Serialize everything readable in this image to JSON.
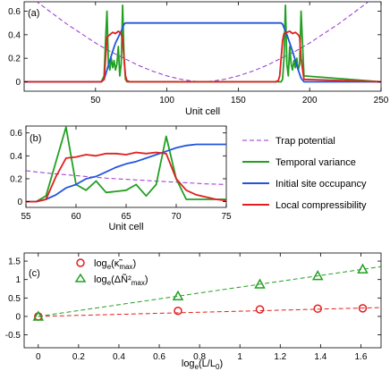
{
  "chart_data": [
    {
      "id": "a",
      "panel_label": "(a)",
      "type": "line",
      "xlabel": "Unit cell",
      "ylabel": "",
      "xlim": [
        0,
        250
      ],
      "ylim": [
        -0.08,
        0.68
      ],
      "xticks": [
        50,
        100,
        150,
        200,
        250
      ],
      "yticks": [
        0,
        0.2,
        0.4,
        0.6
      ],
      "xtick_labels": [
        "50",
        "100",
        "150",
        "200",
        "250"
      ],
      "ytick_labels": [
        "0",
        "0.2",
        "0.4",
        "0.6"
      ],
      "series": [
        {
          "key": "trap",
          "color": "#9a32cd",
          "dash": "5,3",
          "x": [
            0,
            10,
            20,
            30,
            40,
            50,
            60,
            70,
            80,
            90,
            100,
            110,
            118,
            125,
            132,
            140,
            150,
            160,
            170,
            180,
            190,
            200,
            210,
            220,
            230,
            240,
            250
          ],
          "y": [
            0.76,
            0.67,
            0.58,
            0.49,
            0.41,
            0.33,
            0.26,
            0.2,
            0.14,
            0.09,
            0.05,
            0.02,
            0.006,
            0.0,
            0.006,
            0.02,
            0.05,
            0.09,
            0.14,
            0.2,
            0.26,
            0.33,
            0.41,
            0.49,
            0.58,
            0.67,
            0.76
          ]
        },
        {
          "key": "var",
          "color": "#22a022",
          "dash": "",
          "x": [
            0,
            54,
            56,
            57,
            58,
            59,
            60,
            61,
            62,
            63,
            64,
            65,
            66,
            67,
            68,
            69,
            70,
            71,
            72,
            180,
            181,
            182,
            183,
            184,
            185,
            186,
            187,
            188,
            189,
            190,
            191,
            192,
            193,
            194,
            196,
            250
          ],
          "y": [
            0,
            0,
            0.05,
            0.35,
            0.6,
            0.15,
            0.1,
            0.2,
            0.12,
            0.18,
            0.1,
            0.15,
            0.3,
            0.05,
            0.15,
            0.65,
            0.2,
            0.02,
            0,
            0,
            0.02,
            0.2,
            0.65,
            0.15,
            0.05,
            0.3,
            0.15,
            0.1,
            0.18,
            0.12,
            0.2,
            0.1,
            0.15,
            0.6,
            0.05,
            0
          ]
        },
        {
          "key": "occ",
          "color": "#2255dd",
          "dash": "",
          "x": [
            0,
            54,
            56,
            58,
            60,
            62,
            64,
            66,
            68,
            69,
            70,
            71,
            72,
            74,
            178,
            180,
            181,
            182,
            184,
            186,
            188,
            190,
            192,
            194,
            196,
            250
          ],
          "y": [
            0,
            0,
            0.02,
            0.1,
            0.18,
            0.26,
            0.33,
            0.38,
            0.43,
            0.46,
            0.49,
            0.5,
            0.5,
            0.5,
            0.5,
            0.5,
            0.49,
            0.46,
            0.4,
            0.33,
            0.26,
            0.18,
            0.1,
            0.03,
            0,
            0
          ]
        },
        {
          "key": "comp",
          "color": "#e02020",
          "dash": "",
          "x": [
            0,
            54,
            56,
            57,
            58,
            60,
            62,
            64,
            66,
            67,
            68,
            69,
            70,
            71,
            72,
            74,
            176,
            178,
            179,
            180,
            181,
            182,
            184,
            186,
            188,
            190,
            192,
            193,
            194,
            196,
            250
          ],
          "y": [
            0,
            0,
            0.02,
            0.2,
            0.38,
            0.4,
            0.42,
            0.41,
            0.43,
            0.42,
            0.41,
            0.35,
            0.2,
            0.05,
            0.01,
            0,
            0,
            0.01,
            0.05,
            0.2,
            0.35,
            0.41,
            0.42,
            0.43,
            0.41,
            0.42,
            0.4,
            0.38,
            0.2,
            0.02,
            0
          ]
        }
      ]
    },
    {
      "id": "b",
      "panel_label": "(b)",
      "type": "line",
      "xlabel": "Unit cell",
      "ylabel": "",
      "xlim": [
        55,
        75
      ],
      "ylim": [
        -0.05,
        0.66
      ],
      "xticks": [
        55,
        60,
        65,
        70,
        75
      ],
      "yticks": [
        0,
        0.2,
        0.4,
        0.6
      ],
      "xtick_labels": [
        "55",
        "60",
        "65",
        "70",
        "75"
      ],
      "ytick_labels": [
        "0",
        "0.2",
        "0.4",
        "0.6"
      ],
      "series": [
        {
          "key": "trap",
          "color": "#9a32cd",
          "dash": "5,3",
          "x": [
            55,
            57,
            59,
            61,
            63,
            65,
            67,
            69,
            71,
            73,
            75
          ],
          "y": [
            0.27,
            0.25,
            0.235,
            0.22,
            0.205,
            0.195,
            0.185,
            0.175,
            0.165,
            0.155,
            0.15
          ]
        },
        {
          "key": "var",
          "color": "#22a022",
          "dash": "",
          "x": [
            55,
            56,
            57,
            58,
            59,
            60,
            61,
            62,
            63,
            64,
            65,
            66,
            67,
            68,
            69,
            70,
            71,
            72,
            73,
            74,
            75
          ],
          "y": [
            0,
            0,
            0.05,
            0.35,
            0.65,
            0.15,
            0.1,
            0.18,
            0.08,
            0.09,
            0.1,
            0.15,
            0.05,
            0.15,
            0.57,
            0.2,
            0.02,
            0.02,
            0.02,
            0.02,
            0.02
          ]
        },
        {
          "key": "occ",
          "color": "#2255dd",
          "dash": "",
          "x": [
            55,
            56,
            57,
            58,
            59,
            60,
            61,
            62,
            63,
            64,
            65,
            66,
            67,
            68,
            69,
            70,
            71,
            72,
            73,
            74,
            75
          ],
          "y": [
            0,
            0,
            0.02,
            0.06,
            0.12,
            0.15,
            0.2,
            0.22,
            0.26,
            0.3,
            0.33,
            0.35,
            0.38,
            0.41,
            0.44,
            0.47,
            0.49,
            0.5,
            0.5,
            0.5,
            0.5
          ]
        },
        {
          "key": "comp",
          "color": "#e02020",
          "dash": "",
          "x": [
            55,
            56,
            57,
            58,
            59,
            60,
            61,
            62,
            63,
            64,
            65,
            66,
            67,
            68,
            69,
            70,
            71,
            72,
            73,
            74,
            75
          ],
          "y": [
            0,
            0,
            0.02,
            0.22,
            0.38,
            0.39,
            0.41,
            0.4,
            0.42,
            0.42,
            0.41,
            0.43,
            0.42,
            0.43,
            0.42,
            0.2,
            0.1,
            0.06,
            0.04,
            0.02,
            0.01
          ]
        }
      ]
    },
    {
      "id": "c",
      "panel_label": "(c)",
      "type": "scatter",
      "xlabel": "log_e(L/L_0)",
      "ylabel": "",
      "xlim": [
        -0.07,
        1.7
      ],
      "ylim": [
        -0.85,
        1.72
      ],
      "xticks": [
        0,
        0.2,
        0.4,
        0.6,
        0.8,
        1,
        1.2,
        1.4,
        1.6
      ],
      "yticks": [
        -0.5,
        0,
        0.5,
        1,
        1.5
      ],
      "xtick_labels": [
        "0",
        "0.2",
        "0.4",
        "0.6",
        "0.8",
        "1",
        "1.2",
        "1.4",
        "1.6"
      ],
      "ytick_labels": [
        "-0.5",
        "0",
        "0.5",
        "1",
        "1.5"
      ],
      "series": [
        {
          "key": "kappa",
          "color": "#e02020",
          "marker": "circle",
          "x": [
            0,
            0.693,
            1.099,
            1.386,
            1.609
          ],
          "y": [
            0,
            0.15,
            0.19,
            0.21,
            0.22
          ],
          "fit": [
            [
              0,
              0
            ],
            [
              1.7,
              0.24
            ]
          ]
        },
        {
          "key": "dn",
          "color": "#22a022",
          "marker": "triangle",
          "x": [
            0,
            0.693,
            1.099,
            1.386,
            1.609
          ],
          "y": [
            0,
            0.55,
            0.87,
            1.1,
            1.28
          ],
          "fit": [
            [
              0,
              0
            ],
            [
              1.7,
              1.35
            ]
          ]
        }
      ]
    }
  ],
  "legend_b": [
    {
      "label": "Trap potential",
      "color": "#9a32cd",
      "dash": "5,3"
    },
    {
      "label": "Temporal variance",
      "color": "#22a022",
      "dash": ""
    },
    {
      "label": "Initial site occupancy",
      "color": "#2255dd",
      "dash": ""
    },
    {
      "label": "Local compressibility",
      "color": "#e02020",
      "dash": ""
    }
  ],
  "legend_c": [
    {
      "label_prefix": "log",
      "label_sub": "e",
      "label_main": "(κ̃",
      "label_sub2": "max",
      "label_end": ")",
      "color": "#e02020",
      "marker": "circle"
    },
    {
      "label_prefix": "log",
      "label_sub": "e",
      "label_main": "(ΔÑ²",
      "label_sub2": "max",
      "label_end": ")",
      "color": "#22a022",
      "marker": "triangle"
    }
  ]
}
